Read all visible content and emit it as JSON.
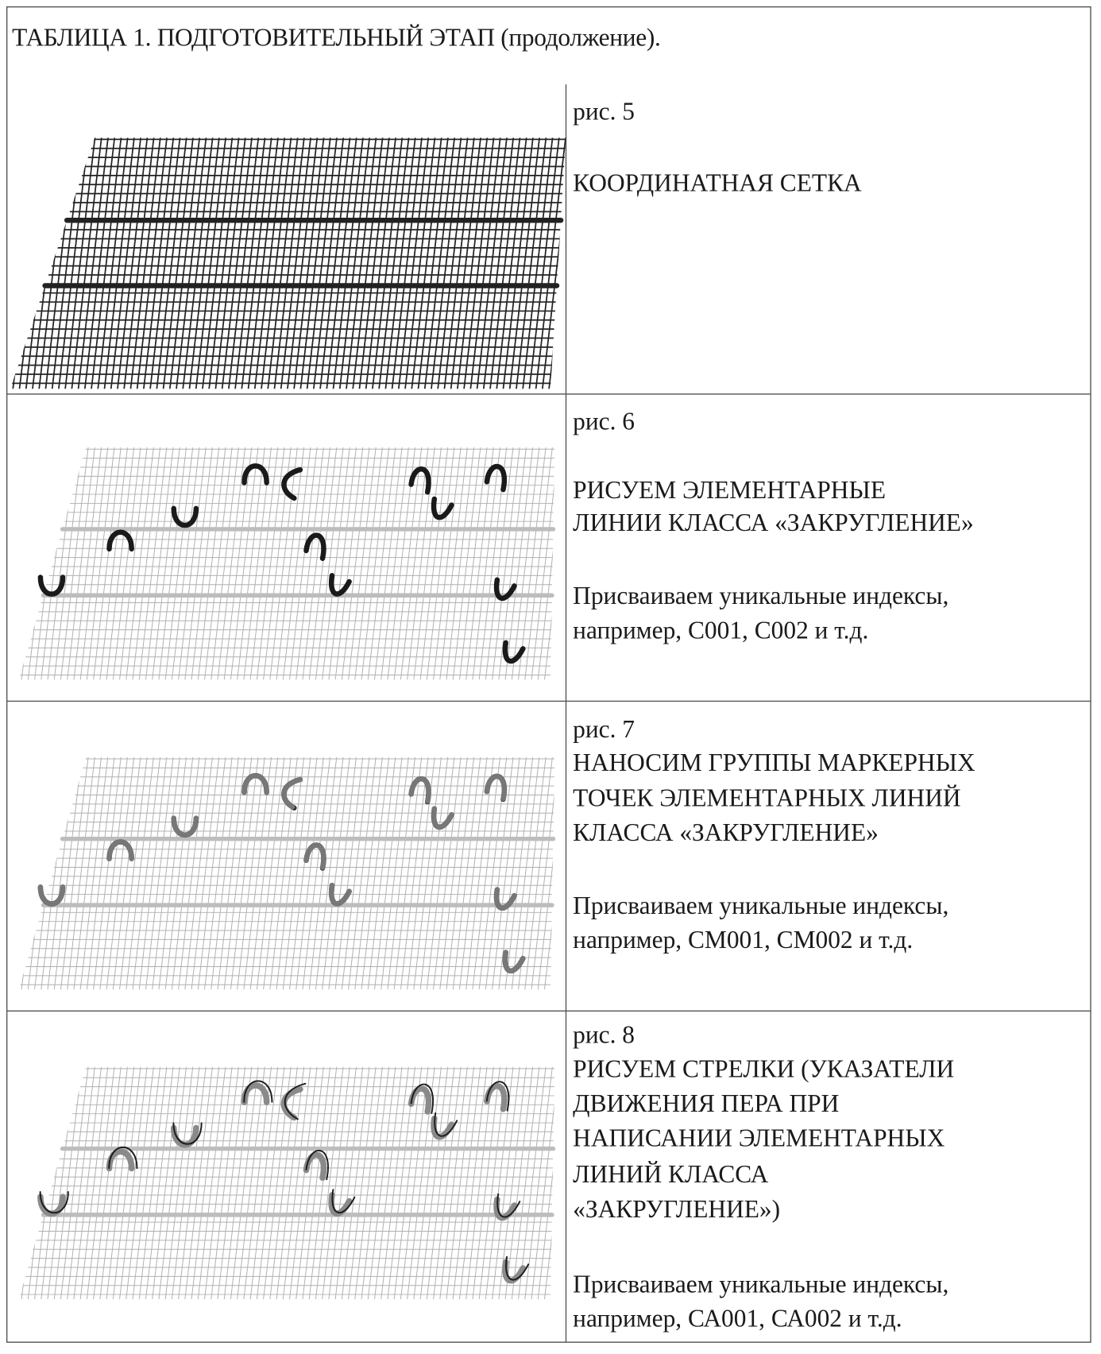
{
  "title": "ТАБЛИЦА 1. ПОДГОТОВИТЕЛЬНЫЙ ЭТАП (продолжение).",
  "rows": [
    {
      "figure": "рис. 5",
      "lines": [
        "КООРДИНАТНАЯ СЕТКА"
      ],
      "note": []
    },
    {
      "figure": "рис. 6",
      "lines": [
        "РИСУЕМ ЭЛЕМЕНТАРНЫЕ",
        "ЛИНИИ КЛАССА «ЗАКРУГЛЕНИЕ»"
      ],
      "note": [
        "Присваиваем уникальные индексы,",
        "например, С001, С002 и т.д."
      ]
    },
    {
      "figure": "рис. 7",
      "lines": [
        "НАНОСИМ ГРУППЫ МАРКЕРНЫХ",
        "ТОЧЕК ЭЛЕМЕНТАРНЫХ ЛИНИЙ",
        "КЛАССА «ЗАКРУГЛЕНИЕ»"
      ],
      "note": [
        "Присваиваем уникальные индексы,",
        "например, СМ001, СМ002 и т.д."
      ]
    },
    {
      "figure": "рис. 8",
      "lines": [
        "РИСУЕМ СТРЕЛКИ (УКАЗАТЕЛИ",
        "ДВИЖЕНИЯ ПЕРА ПРИ",
        "НАПИСАНИИ ЭЛЕМЕНТАРНЫХ",
        "ЛИНИЙ КЛАССА",
        "«ЗАКРУГЛЕНИЕ»)"
      ],
      "note": [
        "Присваиваем уникальные индексы,",
        "например, СА001, СА002 и т.д."
      ]
    }
  ],
  "colors": {
    "ink": "#1a1a1a",
    "grid_dark": "#222222",
    "grid_light": "#b0b0b0",
    "baseline_light": "#bdbdbd",
    "stroke_gray": "#8a8a8a"
  }
}
